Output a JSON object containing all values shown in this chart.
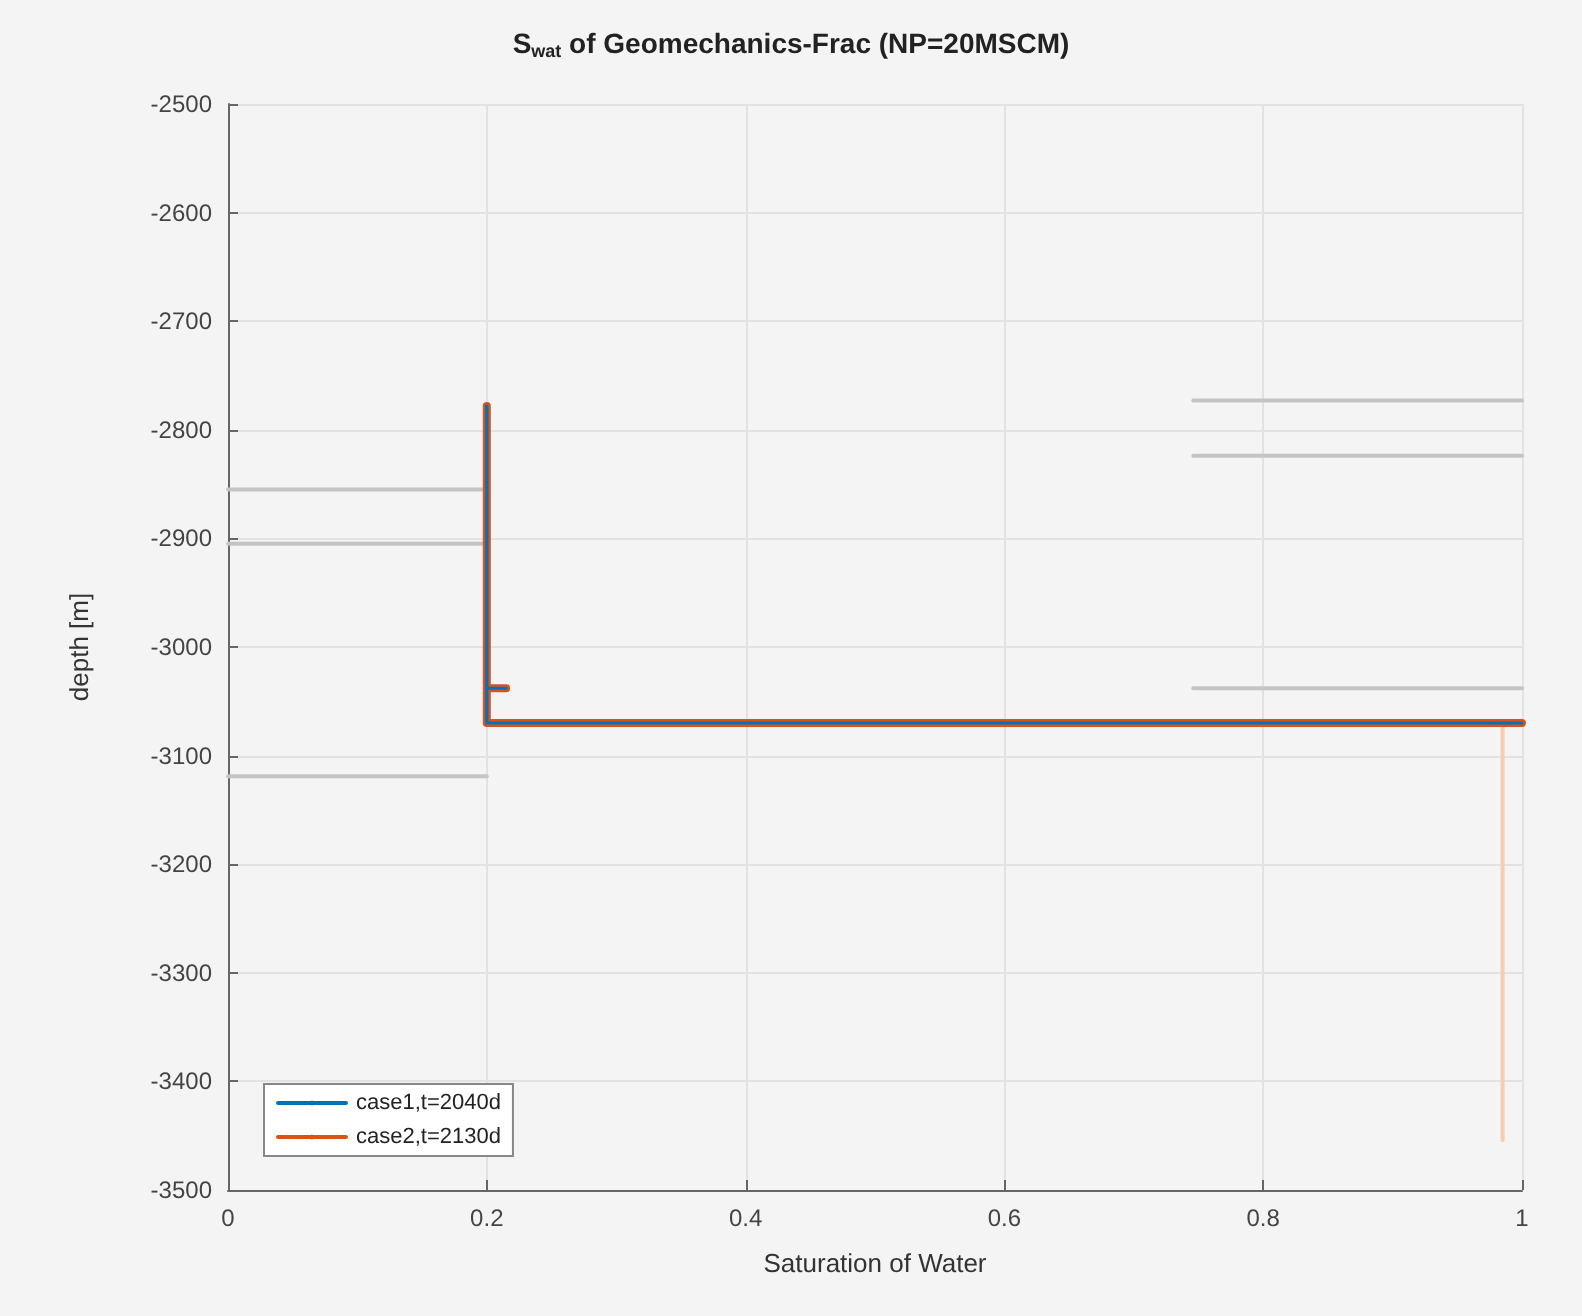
{
  "chart_data": {
    "type": "line",
    "title": "S$_{wat}$ of Geomechanics-Frac (NP=20MSCM)",
    "xlabel": "Saturation of Water",
    "ylabel": "depth [m]",
    "xlim": [
      0,
      1
    ],
    "xticks": [
      0,
      0.2,
      0.4,
      0.6,
      0.8,
      1
    ],
    "ylim": [
      -3500,
      -2500
    ],
    "yticks": [
      -3500,
      -3400,
      -3300,
      -3200,
      -3100,
      -3000,
      -2900,
      -2800,
      -2700,
      -2600,
      -2500
    ],
    "grid": true,
    "legend": "bottom left",
    "marker": "none",
    "line_style": "solid",
    "series": [
      {
        "color": "#c4c4c4",
        "x": [
          0,
          0.2
        ],
        "values": [
          -2855,
          -2855
        ]
      },
      {
        "color": "#c4c4c4",
        "x": [
          0,
          0.2
        ],
        "values": [
          -2905,
          -2905
        ]
      },
      {
        "color": "#c4c4c4",
        "x": [
          0,
          0.2
        ],
        "values": [
          -3119,
          -3119
        ]
      },
      {
        "color": "#c4c4c4",
        "x": [
          0.746,
          1
        ],
        "values": [
          -2773,
          -2773
        ]
      },
      {
        "color": "#c4c4c4",
        "x": [
          0.746,
          1
        ],
        "values": [
          -2824,
          -2824
        ]
      },
      {
        "color": "#c4c4c4",
        "x": [
          0.746,
          1
        ],
        "values": [
          -3038,
          -3038
        ]
      },
      {
        "color": "#f7cdb0",
        "x": [
          0.985,
          0.985
        ],
        "values": [
          -3072,
          -3454
        ]
      },
      {
        "name": "case2,t=2130d",
        "color": "#d95319",
        "x": [
          0.2,
          0.2,
          0.215,
          0.2,
          0.2,
          1
        ],
        "values": [
          -2778,
          -3038,
          -3038,
          -3038,
          -3070,
          -3070
        ]
      },
      {
        "name": "case1,t=2040d",
        "color": "#0072bd",
        "x": [
          0.2,
          0.2,
          0.215,
          0.2,
          0.2,
          1
        ],
        "values": [
          -2778,
          -3038,
          -3038,
          -3038,
          -3070,
          -3070
        ]
      }
    ]
  }
}
